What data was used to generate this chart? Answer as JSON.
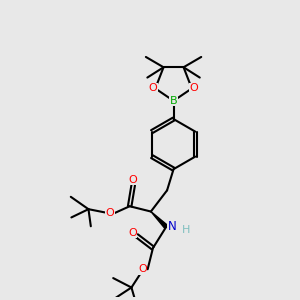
{
  "bg_color": "#e8e8e8",
  "bond_color": "#000000",
  "bond_width": 1.5,
  "atom_colors": {
    "O": "#ff0000",
    "N": "#0000cd",
    "B": "#00aa00",
    "H": "#7fbfbf",
    "C": "#000000"
  },
  "figsize": [
    3.0,
    3.0
  ],
  "dpi": 100
}
